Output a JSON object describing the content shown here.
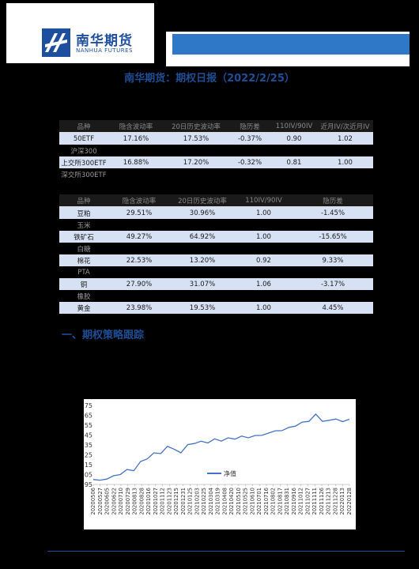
{
  "header": {
    "logo_cn": "南华期货",
    "logo_en": "NANHUA FUTURES",
    "title": "南华期货：期权日报（2022/2/25）"
  },
  "table1": {
    "columns": [
      "品种",
      "隐含波动率",
      "20日历史波动率",
      "隐历差",
      "110IV/90IV",
      "近月IV/次近月IV"
    ],
    "rows": [
      {
        "highlight": true,
        "cells": [
          "50ETF",
          "17.16%",
          "17.53%",
          "-0.37%",
          "0.90",
          "1.02"
        ]
      },
      {
        "highlight": false,
        "cells": [
          "沪深300",
          "",
          "",
          "",
          "",
          ""
        ]
      },
      {
        "highlight": true,
        "cells": [
          "上交所300ETF",
          "16.88%",
          "17.20%",
          "-0.32%",
          "0.81",
          "1.00"
        ]
      },
      {
        "highlight": false,
        "cells": [
          "深交所300ETF",
          "",
          "",
          "",
          "",
          ""
        ]
      }
    ]
  },
  "table2": {
    "columns": [
      "品种",
      "隐含波动率",
      "20日历史波动率",
      "110IV/90IV",
      "隐历差"
    ],
    "rows": [
      {
        "highlight": true,
        "cells": [
          "豆粕",
          "29.51%",
          "30.96%",
          "1.00",
          "-1.45%"
        ]
      },
      {
        "highlight": false,
        "cells": [
          "玉米",
          "",
          "",
          "",
          ""
        ]
      },
      {
        "highlight": true,
        "cells": [
          "铁矿石",
          "49.27%",
          "64.92%",
          "1.00",
          "-15.65%"
        ]
      },
      {
        "highlight": false,
        "cells": [
          "白糖",
          "",
          "",
          "",
          ""
        ]
      },
      {
        "highlight": true,
        "cells": [
          "棉花",
          "22.53%",
          "13.20%",
          "0.92",
          "9.33%"
        ]
      },
      {
        "highlight": false,
        "cells": [
          "PTA",
          "",
          "",
          "",
          ""
        ]
      },
      {
        "highlight": true,
        "cells": [
          "铜",
          "27.90%",
          "31.07%",
          "1.06",
          "-3.17%"
        ]
      },
      {
        "highlight": false,
        "cells": [
          "橡胶",
          "",
          "",
          "",
          ""
        ]
      },
      {
        "highlight": true,
        "cells": [
          "黄金",
          "23.98%",
          "19.53%",
          "1.00",
          "4.45%"
        ]
      }
    ]
  },
  "section_title": "一、期权策略跟踪",
  "chart_data": {
    "type": "line",
    "ylim": [
      0.95,
      1.75
    ],
    "yticks": [
      "1.75",
      "1.65",
      "1.55",
      "1.45",
      "1.35",
      "1.25",
      "1.15",
      "1.05",
      "0.95"
    ],
    "xticks": [
      "20200506",
      "20200527",
      "20200605",
      "20200622",
      "20200710",
      "20200729",
      "20200813",
      "20200828",
      "20201016",
      "20201027",
      "20201112",
      "20201123",
      "20201215",
      "20201231",
      "20210125",
      "20210203",
      "20210225",
      "20210304",
      "20210319",
      "20210408",
      "20210420",
      "20210510",
      "20210525",
      "20210610",
      "20210701",
      "20210716",
      "20210802",
      "20210817",
      "20210831",
      "20210916",
      "20211012",
      "20211027",
      "20211111",
      "20211126",
      "20211213",
      "20211228",
      "20220113",
      "20220128"
    ],
    "series": [
      {
        "name": "净值",
        "color": "#4472c4",
        "x": [
          "20200506",
          "20200527",
          "20200605",
          "20200622",
          "20200710",
          "20200729",
          "20200813",
          "20200828",
          "20201016",
          "20201027",
          "20201112",
          "20201123",
          "20201215",
          "20201231",
          "20210125",
          "20210203",
          "20210225",
          "20210304",
          "20210319",
          "20210408",
          "20210420",
          "20210510",
          "20210525",
          "20210610",
          "20210701",
          "20210716",
          "20210802",
          "20210817",
          "20210831",
          "20210916",
          "20211012",
          "20211027",
          "20211111",
          "20211126",
          "20211213",
          "20211228",
          "20220113",
          "20220128",
          "20220225"
        ],
        "values": [
          1.0,
          0.99,
          1.01,
          1.03,
          1.06,
          1.09,
          1.1,
          1.17,
          1.22,
          1.26,
          1.27,
          1.33,
          1.31,
          1.27,
          1.35,
          1.37,
          1.38,
          1.38,
          1.4,
          1.4,
          1.41,
          1.42,
          1.43,
          1.43,
          1.44,
          1.45,
          1.47,
          1.49,
          1.5,
          1.52,
          1.55,
          1.57,
          1.6,
          1.65,
          1.6,
          1.59,
          1.62,
          1.58,
          1.61
        ]
      }
    ]
  }
}
